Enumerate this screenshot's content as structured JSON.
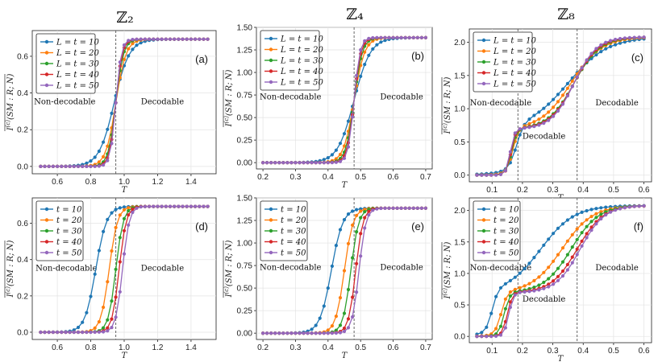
{
  "column_titles": [
    "ℤ₂",
    "ℤ₄",
    "ℤ₈"
  ],
  "colors": [
    "#1f77b4",
    "#ff7f0e",
    "#2ca02c",
    "#d62728",
    "#9467bd"
  ],
  "chart_data": [
    {
      "id": "a",
      "type": "line",
      "panel_label": "(a)",
      "xlabel": "T",
      "ylabel": "I^(c)(SM:R;N) (overlined)",
      "xlim": [
        0.45,
        1.55
      ],
      "ylim": [
        -0.04,
        0.74
      ],
      "xticks": [
        0.6,
        0.8,
        1.0,
        1.2,
        1.4
      ],
      "xtick_labels": [
        "0.6",
        "0.8",
        "1.0",
        "1.2",
        "1.4"
      ],
      "yticks": [
        0,
        0.2,
        0.4,
        0.6
      ],
      "ytick_labels": [
        "0.0",
        "0.2",
        "0.4",
        "0.6"
      ],
      "vlines": [
        0.95
      ],
      "regions": [
        {
          "text": "Non-decodable",
          "x": 0.46,
          "y": 0.34
        },
        {
          "text": "Decodable",
          "x": 1.1,
          "y": 0.34
        }
      ],
      "legend": [
        "L = t = 10",
        "L = t = 20",
        "L = t = 30",
        "L = t = 40",
        "L = t = 50"
      ],
      "curves": {
        "family": "tanh",
        "x_range": [
          0.5,
          1.5
        ],
        "n_points": 41,
        "low": 0,
        "high": 0.693,
        "centers": [
          0.94,
          0.95,
          0.95,
          0.95,
          0.95
        ],
        "widths": [
          0.09,
          0.06,
          0.045,
          0.038,
          0.033
        ]
      }
    },
    {
      "id": "b",
      "type": "line",
      "panel_label": "(b)",
      "xlabel": "T",
      "ylabel": "I^(c)(SM:R;N) (overlined)",
      "xlim": [
        0.18,
        0.72
      ],
      "ylim": [
        -0.07,
        1.5
      ],
      "xticks": [
        0.2,
        0.3,
        0.4,
        0.5,
        0.6,
        0.7
      ],
      "xtick_labels": [
        "0.2",
        "0.3",
        "0.4",
        "0.5",
        "0.6",
        "0.7"
      ],
      "yticks": [
        0,
        0.25,
        0.5,
        0.75,
        1.0,
        1.25,
        1.5
      ],
      "ytick_labels": [
        "0.00",
        "0.25",
        "0.50",
        "0.75",
        "1.00",
        "1.25",
        "1.50"
      ],
      "vlines": [
        0.48
      ],
      "regions": [
        {
          "text": "Non-decodable",
          "x": 0.19,
          "y": 0.7
        },
        {
          "text": "Decodable",
          "x": 0.56,
          "y": 0.7
        }
      ],
      "legend": [
        "L = t = 10",
        "L = t = 20",
        "L = t = 30",
        "L = t = 40",
        "L = t = 50"
      ],
      "curves": {
        "family": "tanh",
        "x_range": [
          0.2,
          0.7
        ],
        "n_points": 41,
        "low": 0,
        "high": 1.386,
        "centers": [
          0.48,
          0.48,
          0.48,
          0.48,
          0.48
        ],
        "widths": [
          0.05,
          0.032,
          0.025,
          0.021,
          0.018
        ]
      }
    },
    {
      "id": "c",
      "type": "line",
      "panel_label": "(c)",
      "xlabel": "T",
      "ylabel": "I^(c)(SM:R;N) (overlined)",
      "xlim": [
        0.025,
        0.625
      ],
      "ylim": [
        -0.1,
        2.2
      ],
      "xticks": [
        0.1,
        0.2,
        0.3,
        0.4,
        0.5,
        0.6
      ],
      "xtick_labels": [
        "0.1",
        "0.2",
        "0.3",
        "0.4",
        "0.5",
        "0.6"
      ],
      "yticks": [
        0,
        0.5,
        1.0,
        1.5,
        2.0
      ],
      "ytick_labels": [
        "0.0",
        "0.5",
        "1.0",
        "1.5",
        "2.0"
      ],
      "vlines": [
        0.185,
        0.38
      ],
      "regions": [
        {
          "text": "Non-decodable",
          "x": 0.027,
          "y": 1.05
        },
        {
          "text": "Decodable",
          "x": 0.2,
          "y": 0.55
        },
        {
          "text": "Decodable",
          "x": 0.44,
          "y": 1.05
        }
      ],
      "legend": [
        "L = t = 10",
        "L = t = 20",
        "L = t = 30",
        "L = t = 40",
        "L = t = 50"
      ],
      "curves": {
        "family": "double",
        "x_range": [
          0.05,
          0.6
        ],
        "n_points": 36,
        "plateau": 0.693,
        "high": 2.079,
        "c1": [
          0.18,
          0.168,
          0.164,
          0.162,
          0.16
        ],
        "w1": [
          0.025,
          0.02,
          0.017,
          0.015,
          0.014
        ],
        "c2": [
          0.35,
          0.36,
          0.37,
          0.37,
          0.37
        ],
        "w2": [
          0.13,
          0.1,
          0.085,
          0.08,
          0.075
        ]
      }
    },
    {
      "id": "d",
      "type": "line",
      "panel_label": "(d)",
      "xlabel": "T",
      "ylabel": "I^(c)(SM:R;N) (overlined)",
      "xlim": [
        0.45,
        1.55
      ],
      "ylim": [
        -0.04,
        0.74
      ],
      "xticks": [
        0.6,
        0.8,
        1.0,
        1.2,
        1.4
      ],
      "xtick_labels": [
        "0.6",
        "0.8",
        "1.0",
        "1.2",
        "1.4"
      ],
      "yticks": [
        0,
        0.2,
        0.4,
        0.6
      ],
      "ytick_labels": [
        "0.0",
        "0.2",
        "0.4",
        "0.6"
      ],
      "vlines": [
        0.95
      ],
      "regions": [
        {
          "text": "Non-decodable",
          "x": 0.47,
          "y": 0.34
        },
        {
          "text": "Decodable",
          "x": 1.1,
          "y": 0.34
        }
      ],
      "legend": [
        "t = 10",
        "t = 20",
        "t = 30",
        "t = 40",
        "t = 50"
      ],
      "curves": {
        "family": "tanh",
        "x_range": [
          0.5,
          1.5
        ],
        "n_points": 41,
        "low": 0,
        "high": 0.693,
        "centers": [
          0.83,
          0.91,
          0.95,
          0.97,
          0.99
        ],
        "widths": [
          0.065,
          0.05,
          0.045,
          0.042,
          0.04
        ]
      }
    },
    {
      "id": "e",
      "type": "line",
      "panel_label": "(e)",
      "xlabel": "T",
      "ylabel": "I^(c)(SM:R;N) (overlined)",
      "xlim": [
        0.18,
        0.72
      ],
      "ylim": [
        -0.07,
        1.5
      ],
      "xticks": [
        0.2,
        0.3,
        0.4,
        0.5,
        0.6,
        0.7
      ],
      "xtick_labels": [
        "0.2",
        "0.3",
        "0.4",
        "0.5",
        "0.6",
        "0.7"
      ],
      "yticks": [
        0,
        0.25,
        0.5,
        0.75,
        1.0,
        1.25,
        1.5
      ],
      "ytick_labels": [
        "0.00",
        "0.25",
        "0.50",
        "0.75",
        "1.00",
        "1.25",
        "1.50"
      ],
      "vlines": [
        0.48
      ],
      "regions": [
        {
          "text": "Non-decodable",
          "x": 0.19,
          "y": 0.7
        },
        {
          "text": "Decodable",
          "x": 0.56,
          "y": 0.7
        }
      ],
      "legend": [
        "t = 10",
        "t = 20",
        "t = 30",
        "t = 40",
        "t = 50"
      ],
      "curves": {
        "family": "tanh",
        "x_range": [
          0.2,
          0.7
        ],
        "n_points": 41,
        "low": 0,
        "high": 1.386,
        "centers": [
          0.41,
          0.45,
          0.47,
          0.485,
          0.495
        ],
        "widths": [
          0.035,
          0.027,
          0.024,
          0.022,
          0.021
        ]
      }
    },
    {
      "id": "f",
      "type": "line",
      "panel_label": "(f)",
      "xlabel": "T",
      "ylabel": "I^(c)(SM:R;N) (overlined)",
      "xlim": [
        0.025,
        0.625
      ],
      "ylim": [
        -0.1,
        2.2
      ],
      "xticks": [
        0.1,
        0.2,
        0.3,
        0.4,
        0.5,
        0.6
      ],
      "xtick_labels": [
        "0.1",
        "0.2",
        "0.3",
        "0.4",
        "0.5",
        "0.6"
      ],
      "yticks": [
        0,
        0.5,
        1.0,
        1.5,
        2.0
      ],
      "ytick_labels": [
        "0.0",
        "0.5",
        "1.0",
        "1.5",
        "2.0"
      ],
      "vlines": [
        0.185,
        0.38
      ],
      "regions": [
        {
          "text": "Non-decodable",
          "x": 0.027,
          "y": 1.05
        },
        {
          "text": "Decodable",
          "x": 0.2,
          "y": 0.55
        },
        {
          "text": "Decodable",
          "x": 0.44,
          "y": 1.05
        }
      ],
      "legend": [
        "t = 10",
        "t = 20",
        "t = 30",
        "t = 40",
        "t = 50"
      ],
      "curves": {
        "family": "double",
        "x_range": [
          0.05,
          0.6
        ],
        "n_points": 36,
        "plateau": 0.693,
        "high": 2.079,
        "c1": [
          0.1,
          0.13,
          0.14,
          0.15,
          0.155
        ],
        "w1": [
          0.02,
          0.02,
          0.018,
          0.016,
          0.015
        ],
        "c2": [
          0.26,
          0.33,
          0.36,
          0.38,
          0.39
        ],
        "w2": [
          0.11,
          0.1,
          0.09,
          0.085,
          0.08
        ]
      }
    }
  ]
}
